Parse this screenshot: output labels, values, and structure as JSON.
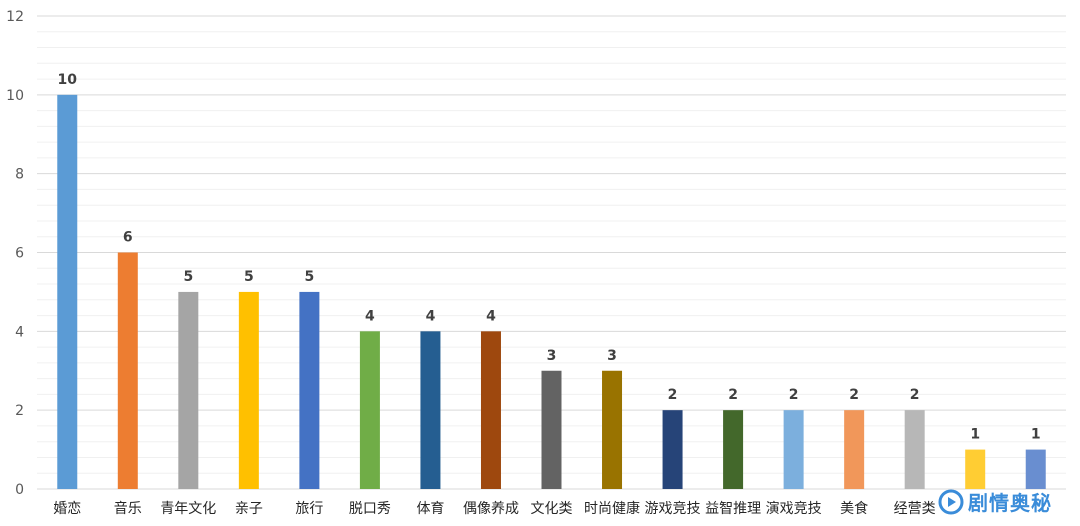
{
  "chart_data": {
    "type": "bar",
    "categories": [
      "婚恋",
      "音乐",
      "青年文化",
      "亲子",
      "旅行",
      "脱口秀",
      "体育",
      "偶像养成",
      "文化类",
      "时尚健康",
      "游戏竞技",
      "益智推理",
      "演戏竞技",
      "美食",
      "经营类",
      "",
      ""
    ],
    "values": [
      10,
      6,
      5,
      5,
      5,
      4,
      4,
      4,
      3,
      3,
      2,
      2,
      2,
      2,
      2,
      1,
      1
    ],
    "colors": [
      "#5b9bd5",
      "#ed7d31",
      "#a5a5a5",
      "#ffc000",
      "#4472c4",
      "#70ad47",
      "#255e91",
      "#9e480e",
      "#636363",
      "#997300",
      "#264478",
      "#43682b",
      "#7cafdd",
      "#f1975a",
      "#b7b7b7",
      "#ffcd33",
      "#698ed0"
    ],
    "ylim": [
      0,
      12
    ],
    "yticks": [
      0,
      2,
      4,
      6,
      8,
      10,
      12
    ],
    "grid": true,
    "data_labels": true
  },
  "watermark": {
    "text": "剧情奥秘",
    "icon": "play-bubble-icon"
  }
}
